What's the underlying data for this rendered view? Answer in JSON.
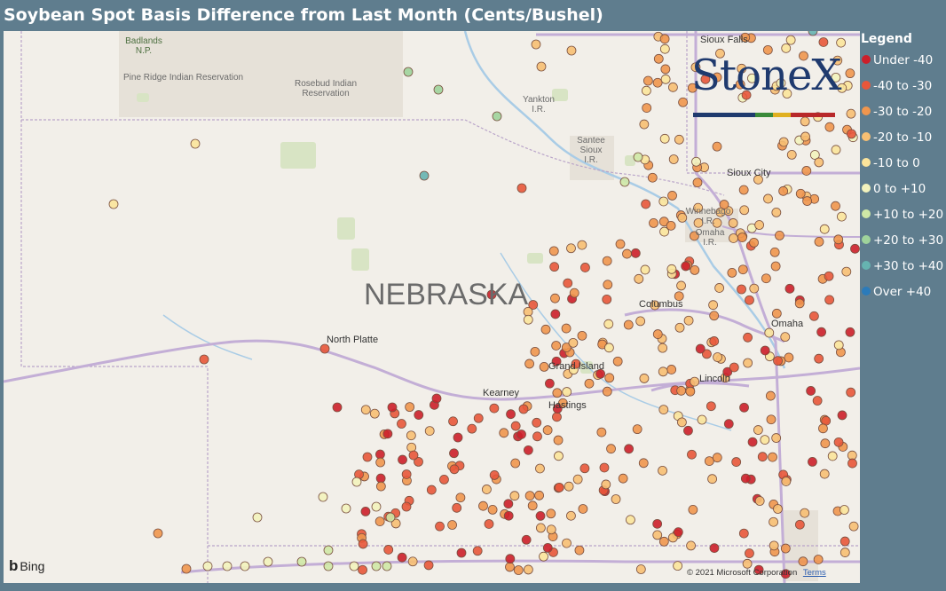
{
  "title": "Soybean Spot Basis Difference from Last Month (Cents/Bushel)",
  "legend": {
    "title": "Legend",
    "items": [
      {
        "label": "Under -40",
        "color": "#cc1f2a"
      },
      {
        "label": "-40 to -30",
        "color": "#e8573a"
      },
      {
        "label": "-30 to -20",
        "color": "#f0964e"
      },
      {
        "label": "-20 to -10",
        "color": "#f7bf73"
      },
      {
        "label": "-10 to 0",
        "color": "#fbe49b"
      },
      {
        "label": "0 to +10",
        "color": "#f3f3bd"
      },
      {
        "label": "+10 to +20",
        "color": "#cfe8a6"
      },
      {
        "label": "+20 to +30",
        "color": "#9fd39b"
      },
      {
        "label": "+30 to +40",
        "color": "#66b3b0"
      },
      {
        "label": "Over +40",
        "color": "#2b7bba"
      }
    ]
  },
  "map": {
    "region_label": "NEBRASKA",
    "places": [
      {
        "name": "Badlands\nN.P.",
        "kind": "park"
      },
      {
        "name": "Pine Ridge Indian Reservation",
        "kind": "reservation"
      },
      {
        "name": "Rosebud Indian\nReservation",
        "kind": "reservation"
      },
      {
        "name": "Yankton\nI.R.",
        "kind": "reservation"
      },
      {
        "name": "Santee\nSioux\nI.R.",
        "kind": "reservation"
      },
      {
        "name": "Winnebago\nI.R.",
        "kind": "reservation"
      },
      {
        "name": "Omaha\nI.R.",
        "kind": "reservation"
      },
      {
        "name": "Sioux Falls",
        "kind": "city"
      },
      {
        "name": "Sioux City",
        "kind": "city"
      },
      {
        "name": "North Platte",
        "kind": "city"
      },
      {
        "name": "Columbus",
        "kind": "city"
      },
      {
        "name": "Omaha",
        "kind": "city"
      },
      {
        "name": "Grand Island",
        "kind": "city"
      },
      {
        "name": "Kearney",
        "kind": "city"
      },
      {
        "name": "Hastings",
        "kind": "city"
      },
      {
        "name": "Lincoln",
        "kind": "city"
      }
    ]
  },
  "branding": {
    "logo_text": "StoneX",
    "map_provider": "Bing",
    "copyright": "© 2021 Microsoft Corporation",
    "terms_link": "Terms"
  }
}
